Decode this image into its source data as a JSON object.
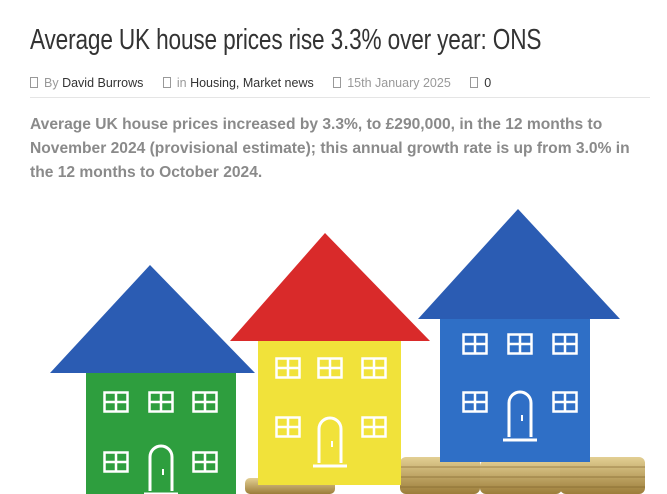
{
  "article": {
    "title": "Average UK house prices rise 3.3% over year: ONS",
    "meta": {
      "by": "By",
      "author": "David Burrows",
      "in": "in",
      "categories": "Housing, Market news",
      "date": "15th January 2025",
      "comments": "0"
    },
    "lede": "Average UK house prices increased by 3.3%, to £290,000, in the 12 months to November 2024 (provisional estimate); this annual growth rate is up from 3.0% in the 12 months to October 2024."
  }
}
